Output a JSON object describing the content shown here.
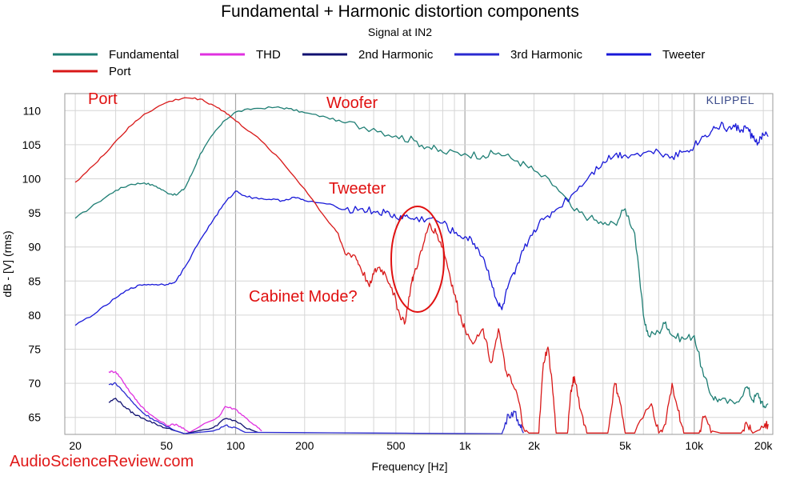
{
  "chart_data": {
    "type": "line",
    "title": "Fundamental + Harmonic distortion components",
    "subtitle": "Signal at IN2",
    "xlabel": "Frequency [Hz]",
    "ylabel": "dB - [V]  (rms)",
    "xscale": "log",
    "xlim": [
      18,
      22000
    ],
    "ylim": [
      62.5,
      112.5
    ],
    "x_ticks": [
      {
        "value": 20,
        "label": "20"
      },
      {
        "value": 50,
        "label": "50"
      },
      {
        "value": 100,
        "label": "100"
      },
      {
        "value": 200,
        "label": "200"
      },
      {
        "value": 500,
        "label": "500"
      },
      {
        "value": 1000,
        "label": "1k"
      },
      {
        "value": 2000,
        "label": "2k"
      },
      {
        "value": 5000,
        "label": "5k"
      },
      {
        "value": 10000,
        "label": "10k"
      },
      {
        "value": 20000,
        "label": "20k"
      }
    ],
    "y_ticks": [
      110,
      105,
      100,
      95,
      90,
      85,
      80,
      75,
      70,
      65
    ],
    "grid": true,
    "legend_position": "top",
    "series": [
      {
        "name": "Fundamental",
        "color": "#1e7e74",
        "points": [
          [
            20,
            94.2
          ],
          [
            25,
            96.5
          ],
          [
            30,
            98.3
          ],
          [
            35,
            99.2
          ],
          [
            40,
            99.4
          ],
          [
            45,
            98.9
          ],
          [
            50,
            98.0
          ],
          [
            55,
            97.6
          ],
          [
            60,
            98.6
          ],
          [
            65,
            101
          ],
          [
            70,
            103.6
          ],
          [
            80,
            106.6
          ],
          [
            90,
            108.6
          ],
          [
            100,
            109.8
          ],
          [
            120,
            110.3
          ],
          [
            150,
            110.5
          ],
          [
            170,
            110.3
          ],
          [
            200,
            109.7
          ],
          [
            250,
            109
          ],
          [
            300,
            108.2
          ],
          [
            400,
            107.4
          ],
          [
            500,
            106.3
          ],
          [
            600,
            105.6
          ],
          [
            700,
            104.6
          ],
          [
            800,
            103.9
          ],
          [
            1000,
            103.7
          ],
          [
            1200,
            103.4
          ],
          [
            1400,
            103.8
          ],
          [
            1700,
            102.6
          ],
          [
            2000,
            101.2
          ],
          [
            2500,
            98.8
          ],
          [
            3000,
            95.3
          ],
          [
            3500,
            94.3
          ],
          [
            4000,
            93.3
          ],
          [
            4500,
            93.4
          ],
          [
            5000,
            95.6
          ],
          [
            5500,
            92
          ],
          [
            6000,
            80
          ],
          [
            6300,
            77
          ],
          [
            7000,
            77.5
          ],
          [
            7500,
            79
          ],
          [
            8000,
            77
          ],
          [
            9000,
            76.5
          ],
          [
            10000,
            77
          ],
          [
            11000,
            71
          ],
          [
            12000,
            68
          ],
          [
            13000,
            67.5
          ],
          [
            15000,
            67
          ],
          [
            17000,
            69.5
          ],
          [
            18000,
            67.5
          ],
          [
            19000,
            68.5
          ],
          [
            20000,
            66.5
          ],
          [
            21000,
            67
          ]
        ]
      },
      {
        "name": "THD",
        "color": "#e030e0",
        "points": [
          [
            28,
            71.7
          ],
          [
            30,
            71.7
          ],
          [
            32,
            70.5
          ],
          [
            35,
            68.5
          ],
          [
            38,
            67
          ],
          [
            42,
            65.5
          ],
          [
            50,
            63.8
          ],
          [
            55,
            64
          ],
          [
            60,
            63.2
          ],
          [
            63,
            62.8
          ],
          [
            85,
            65.2
          ],
          [
            90,
            66.6
          ],
          [
            100,
            66.2
          ],
          [
            110,
            65
          ],
          [
            125,
            63.5
          ],
          [
            130,
            63
          ]
        ]
      },
      {
        "name": "2nd Harmonic",
        "color": "#101070",
        "points": [
          [
            28,
            67.2
          ],
          [
            30,
            67.8
          ],
          [
            33,
            66.5
          ],
          [
            36,
            65.5
          ],
          [
            40,
            64.8
          ],
          [
            45,
            64
          ],
          [
            50,
            63.4
          ],
          [
            55,
            63
          ],
          [
            60,
            62.6
          ],
          [
            80,
            63.5
          ],
          [
            90,
            64.8
          ],
          [
            100,
            64.5
          ],
          [
            110,
            63.5
          ],
          [
            125,
            62.8
          ]
        ]
      },
      {
        "name": "3rd Harmonic",
        "color": "#2a2ad0",
        "points": [
          [
            28,
            69.8
          ],
          [
            30,
            70
          ],
          [
            33,
            68.5
          ],
          [
            36,
            67
          ],
          [
            40,
            65.5
          ],
          [
            45,
            64.5
          ],
          [
            50,
            63.6
          ],
          [
            55,
            63
          ],
          [
            60,
            62.6
          ],
          [
            80,
            63
          ],
          [
            90,
            63.8
          ],
          [
            100,
            63.5
          ],
          [
            110,
            62.8
          ],
          [
            1450,
            62.6
          ],
          [
            1550,
            65.4
          ],
          [
            1650,
            65.8
          ],
          [
            1750,
            63.5
          ],
          [
            1800,
            62.7
          ]
        ]
      },
      {
        "name": "Tweeter",
        "color": "#1818d8",
        "points": [
          [
            20,
            78.5
          ],
          [
            25,
            80.5
          ],
          [
            30,
            82.5
          ],
          [
            35,
            84
          ],
          [
            40,
            84.5
          ],
          [
            45,
            84.5
          ],
          [
            50,
            84.5
          ],
          [
            55,
            85
          ],
          [
            60,
            87
          ],
          [
            70,
            91
          ],
          [
            80,
            94
          ],
          [
            90,
            96.5
          ],
          [
            100,
            98.2
          ],
          [
            110,
            97.5
          ],
          [
            120,
            97.2
          ],
          [
            140,
            97
          ],
          [
            160,
            96.8
          ],
          [
            180,
            97.3
          ],
          [
            200,
            96.8
          ],
          [
            250,
            96.3
          ],
          [
            300,
            95.5
          ],
          [
            350,
            95.6
          ],
          [
            400,
            95.2
          ],
          [
            450,
            95
          ],
          [
            500,
            94.3
          ],
          [
            550,
            94.5
          ],
          [
            600,
            94
          ],
          [
            700,
            94.2
          ],
          [
            800,
            93.5
          ],
          [
            900,
            92
          ],
          [
            1000,
            91.5
          ],
          [
            1100,
            90.5
          ],
          [
            1200,
            88.5
          ],
          [
            1300,
            85
          ],
          [
            1400,
            81.5
          ],
          [
            1450,
            80.8
          ],
          [
            1550,
            84.5
          ],
          [
            1650,
            86
          ],
          [
            1800,
            89.5
          ],
          [
            2000,
            92.5
          ],
          [
            2200,
            94
          ],
          [
            2500,
            95.5
          ],
          [
            3000,
            98
          ],
          [
            3500,
            100.5
          ],
          [
            4000,
            102.5
          ],
          [
            4500,
            103.5
          ],
          [
            5000,
            103.5
          ],
          [
            6000,
            103.8
          ],
          [
            7000,
            104
          ],
          [
            8000,
            103.3
          ],
          [
            9000,
            104
          ],
          [
            10000,
            104.8
          ],
          [
            11000,
            106.2
          ],
          [
            12000,
            107.2
          ],
          [
            13000,
            107.8
          ],
          [
            14000,
            107.3
          ],
          [
            15000,
            107.6
          ],
          [
            16000,
            107.2
          ],
          [
            17000,
            107.5
          ],
          [
            18000,
            106
          ],
          [
            19000,
            105.3
          ],
          [
            20000,
            106.5
          ],
          [
            21000,
            106.2
          ]
        ]
      },
      {
        "name": "Port",
        "color": "#d81818",
        "points": [
          [
            20,
            99.5
          ],
          [
            25,
            102.5
          ],
          [
            30,
            105.5
          ],
          [
            35,
            107.8
          ],
          [
            40,
            109.5
          ],
          [
            50,
            111.2
          ],
          [
            60,
            111.9
          ],
          [
            70,
            111.7
          ],
          [
            80,
            110.8
          ],
          [
            90,
            109.8
          ],
          [
            100,
            108.5
          ],
          [
            120,
            106.5
          ],
          [
            150,
            103.5
          ],
          [
            200,
            98.5
          ],
          [
            250,
            94
          ],
          [
            280,
            92
          ],
          [
            300,
            89
          ],
          [
            330,
            88.8
          ],
          [
            350,
            87
          ],
          [
            380,
            84.5
          ],
          [
            400,
            86
          ],
          [
            420,
            87
          ],
          [
            450,
            86
          ],
          [
            480,
            84
          ],
          [
            520,
            80
          ],
          [
            550,
            79
          ],
          [
            580,
            84
          ],
          [
            600,
            86
          ],
          [
            650,
            89.5
          ],
          [
            700,
            93.5
          ],
          [
            750,
            92
          ],
          [
            800,
            90
          ],
          [
            850,
            86.5
          ],
          [
            900,
            83
          ],
          [
            950,
            80
          ],
          [
            1000,
            78
          ],
          [
            1100,
            76
          ],
          [
            1200,
            78
          ],
          [
            1300,
            73
          ],
          [
            1400,
            78
          ],
          [
            1500,
            72
          ],
          [
            1600,
            70
          ],
          [
            1700,
            68
          ],
          [
            1800,
            63.5
          ],
          [
            1900,
            62.7
          ],
          [
            2100,
            62.7
          ],
          [
            2200,
            73
          ],
          [
            2300,
            75.3
          ],
          [
            2400,
            70
          ],
          [
            2500,
            62.7
          ],
          [
            2800,
            62.7
          ],
          [
            2900,
            69
          ],
          [
            3000,
            71
          ],
          [
            3200,
            66
          ],
          [
            3400,
            62.7
          ],
          [
            4200,
            62.7
          ],
          [
            4500,
            70
          ],
          [
            4700,
            68
          ],
          [
            5000,
            62.7
          ],
          [
            5500,
            62.7
          ],
          [
            6500,
            67
          ],
          [
            7000,
            62.7
          ],
          [
            7500,
            64
          ],
          [
            8000,
            70
          ],
          [
            8500,
            66
          ],
          [
            9000,
            62.7
          ],
          [
            10500,
            62.7
          ],
          [
            11000,
            65
          ],
          [
            12000,
            63
          ],
          [
            13000,
            62.7
          ],
          [
            16000,
            62.7
          ],
          [
            17000,
            64
          ],
          [
            18000,
            62.7
          ],
          [
            20000,
            63.5
          ],
          [
            21000,
            64
          ]
        ]
      }
    ],
    "annotations": [
      {
        "text": "Port",
        "color": "#e01010"
      },
      {
        "text": "Woofer",
        "color": "#e01010"
      },
      {
        "text": "Tweeter",
        "color": "#e01010"
      },
      {
        "text": "Cabinet Mode?",
        "color": "#e01010"
      }
    ]
  },
  "branding": {
    "klippel": "KLIPPEL",
    "watermark": "AudioScienceReview.com"
  }
}
